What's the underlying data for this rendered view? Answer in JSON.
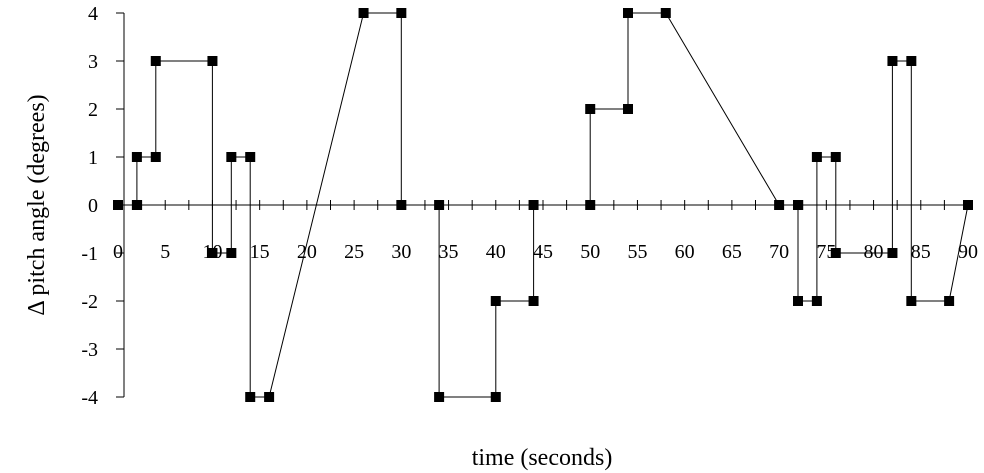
{
  "chart_data": {
    "type": "line",
    "title": "",
    "xlabel": "time (seconds)",
    "ylabel": "Δ pitch angle (degrees)",
    "xlim": [
      0,
      90
    ],
    "ylim": [
      -4,
      4
    ],
    "x_ticks": [
      0,
      5,
      10,
      15,
      20,
      25,
      30,
      35,
      40,
      45,
      50,
      55,
      60,
      65,
      70,
      75,
      80,
      85,
      90
    ],
    "y_ticks": [
      -4,
      -3,
      -2,
      -1,
      0,
      1,
      2,
      3,
      4
    ],
    "marker": "square",
    "grid": false,
    "legend": "none",
    "series": [
      {
        "x": [
          0,
          2,
          2,
          4,
          4,
          10,
          10,
          12,
          12,
          14,
          14,
          16,
          26,
          30,
          30,
          34,
          34,
          40,
          40,
          44,
          44,
          50,
          50,
          54,
          54,
          58,
          70,
          72,
          72,
          74,
          74,
          76,
          76,
          82,
          82,
          84,
          84,
          88,
          90
        ],
        "y": [
          0,
          0,
          1,
          1,
          3,
          3,
          -1,
          -1,
          1,
          1,
          -4,
          -4,
          4,
          4,
          0,
          0,
          -4,
          -4,
          -2,
          -2,
          0,
          0,
          2,
          2,
          4,
          4,
          0,
          0,
          -2,
          -2,
          1,
          1,
          -1,
          -1,
          3,
          3,
          -2,
          -2,
          0
        ]
      }
    ]
  }
}
